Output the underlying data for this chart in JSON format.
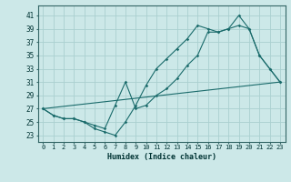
{
  "xlabel": "Humidex (Indice chaleur)",
  "xlim": [
    -0.5,
    23.5
  ],
  "ylim": [
    22.0,
    42.5
  ],
  "xticks": [
    0,
    1,
    2,
    3,
    4,
    5,
    6,
    7,
    8,
    9,
    10,
    11,
    12,
    13,
    14,
    15,
    16,
    17,
    18,
    19,
    20,
    21,
    22,
    23
  ],
  "yticks": [
    23,
    25,
    27,
    29,
    31,
    33,
    35,
    37,
    39,
    41
  ],
  "bg_color": "#cce8e8",
  "grid_color": "#aad0d0",
  "line_color": "#1a6b6b",
  "line1_x": [
    0,
    1,
    2,
    3,
    4,
    5,
    6,
    7,
    8,
    9,
    10,
    11,
    12,
    13,
    14,
    15,
    16,
    17,
    18,
    19,
    20,
    21,
    22,
    23
  ],
  "line1_y": [
    27,
    26,
    25.5,
    25.5,
    25,
    24,
    23.5,
    23,
    25,
    27.5,
    30.5,
    33,
    34.5,
    36,
    37.5,
    39.5,
    39,
    38.5,
    39,
    39.5,
    39,
    35,
    33,
    31
  ],
  "line2_x": [
    0,
    1,
    2,
    3,
    4,
    5,
    6,
    7,
    8,
    9,
    10,
    11,
    12,
    13,
    14,
    15,
    16,
    17,
    18,
    19,
    20,
    21,
    22,
    23
  ],
  "line2_y": [
    27,
    26,
    25.5,
    25.5,
    25,
    24.5,
    24,
    27.5,
    31,
    27,
    27.5,
    29,
    30,
    31.5,
    33.5,
    35,
    38.5,
    38.5,
    39,
    41,
    39,
    35,
    33,
    31
  ],
  "line3_x": [
    0,
    23
  ],
  "line3_y": [
    27,
    31
  ]
}
